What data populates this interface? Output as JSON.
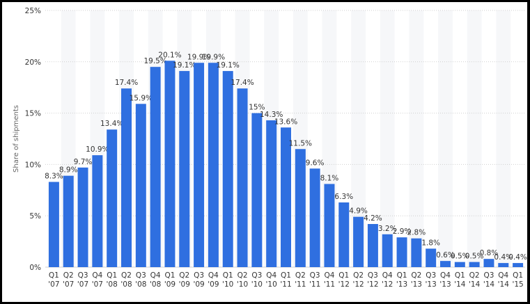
{
  "chart_data": {
    "type": "bar",
    "ylabel": "Share of shipments",
    "xlabel": "",
    "ylim": [
      0,
      25
    ],
    "yticks": [
      "0%",
      "5%",
      "10%",
      "15%",
      "20%",
      "25%"
    ],
    "ytick_values": [
      0,
      5,
      10,
      15,
      20,
      25
    ],
    "grid": true,
    "bar_color": "#2f6fe0",
    "categories": [
      [
        "Q1",
        "'07"
      ],
      [
        "Q2",
        "'07"
      ],
      [
        "Q3",
        "'07"
      ],
      [
        "Q4",
        "'07"
      ],
      [
        "Q1",
        "'08"
      ],
      [
        "Q2",
        "'08"
      ],
      [
        "Q3",
        "'08"
      ],
      [
        "Q4",
        "'08"
      ],
      [
        "Q1",
        "'09"
      ],
      [
        "Q2",
        "'09"
      ],
      [
        "Q3",
        "'09"
      ],
      [
        "Q4",
        "'09"
      ],
      [
        "Q1",
        "'10"
      ],
      [
        "Q2",
        "'10"
      ],
      [
        "Q3",
        "'10"
      ],
      [
        "Q4",
        "'10"
      ],
      [
        "Q1",
        "'11"
      ],
      [
        "Q2",
        "'11"
      ],
      [
        "Q3",
        "'11"
      ],
      [
        "Q4",
        "'11"
      ],
      [
        "Q1",
        "'12"
      ],
      [
        "Q2",
        "'12"
      ],
      [
        "Q3",
        "'12"
      ],
      [
        "Q4",
        "'12"
      ],
      [
        "Q1",
        "'13"
      ],
      [
        "Q2",
        "'13"
      ],
      [
        "Q3",
        "'13"
      ],
      [
        "Q4",
        "'13"
      ],
      [
        "Q1",
        "'14"
      ],
      [
        "Q2",
        "'14"
      ],
      [
        "Q3",
        "'14"
      ],
      [
        "Q4",
        "'14"
      ],
      [
        "Q1",
        "'15"
      ]
    ],
    "values": [
      8.3,
      8.9,
      9.7,
      10.9,
      13.4,
      17.4,
      15.9,
      19.5,
      20.1,
      19.1,
      19.9,
      19.9,
      19.1,
      17.4,
      15,
      14.3,
      13.6,
      11.5,
      9.6,
      8.1,
      6.3,
      4.9,
      4.2,
      3.2,
      2.9,
      2.8,
      1.8,
      0.6,
      0.5,
      0.5,
      0.8,
      0.4,
      0.4
    ],
    "labels": [
      "8.3%",
      "8.9%",
      "9.7%",
      "10.9%",
      "13.4%",
      "17.4%",
      "15.9%",
      "19.5%",
      "20.1%",
      "19.1%",
      "19.9%",
      "19.9%",
      "19.1%",
      "17.4%",
      "15%",
      "14.3%",
      "13.6%",
      "11.5%",
      "9.6%",
      "8.1%",
      "6.3%",
      "4.9%",
      "4.2%",
      "3.2%",
      "2.9%",
      "2.8%",
      "1.8%",
      "0.6%",
      "0.5%",
      "0.5%",
      "0.8%",
      "0.4%",
      "0.4%"
    ]
  }
}
